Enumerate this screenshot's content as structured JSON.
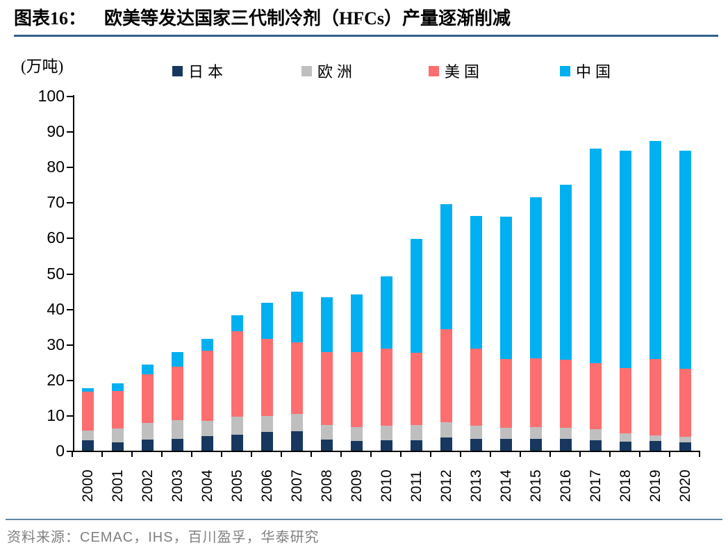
{
  "figure_label": "图表16：",
  "title": "欧美等发达国家三代制冷剂（HFCs）产量逐渐削减",
  "unit_label": "(万吨)",
  "source": "资料来源：CEMAC，IHS，百川盈孚，华泰研究",
  "colors": {
    "japan": "#17375E",
    "europe": "#BFBFBF",
    "usa": "#FC6E6F",
    "china": "#00B0F0",
    "title_rule": "#31608C",
    "source_rule": "#6088A8",
    "source_text": "#808080",
    "axis": "#000000"
  },
  "legend": [
    {
      "label": "日本",
      "color": "#17375E"
    },
    {
      "label": "欧洲",
      "color": "#BFBFBF"
    },
    {
      "label": "美国",
      "color": "#FC6E6F"
    },
    {
      "label": "中国",
      "color": "#00B0F0"
    }
  ],
  "chart_data": {
    "type": "bar",
    "stacked": true,
    "title": "欧美等发达国家三代制冷剂（HFCs）产量逐渐削减",
    "ylabel": "(万吨)",
    "xlabel": "",
    "ylim": [
      0,
      100
    ],
    "ytick_step": 10,
    "grid": false,
    "legend_position": "top",
    "categories": [
      "2000",
      "2001",
      "2002",
      "2003",
      "2004",
      "2005",
      "2006",
      "2007",
      "2008",
      "2009",
      "2010",
      "2011",
      "2012",
      "2013",
      "2014",
      "2015",
      "2016",
      "2017",
      "2018",
      "2019",
      "2020"
    ],
    "series": [
      {
        "name": "日本",
        "color": "#17375E",
        "values": [
          2.9,
          2.3,
          3.2,
          3.4,
          4.1,
          4.5,
          5.2,
          5.5,
          3.2,
          2.7,
          2.9,
          2.9,
          3.8,
          3.4,
          3.4,
          3.3,
          3.4,
          3.0,
          2.6,
          2.7,
          2.3
        ]
      },
      {
        "name": "欧洲",
        "color": "#BFBFBF",
        "values": [
          2.8,
          3.9,
          4.6,
          5.2,
          4.3,
          5.0,
          4.5,
          4.8,
          4.1,
          4.0,
          4.2,
          4.3,
          4.3,
          3.7,
          3.1,
          3.4,
          3.1,
          3.1,
          2.2,
          1.7,
          1.6
        ]
      },
      {
        "name": "美国",
        "color": "#FC6E6F",
        "values": [
          10.9,
          10.7,
          13.7,
          15.0,
          19.8,
          24.1,
          21.9,
          20.2,
          20.5,
          21.0,
          21.6,
          20.4,
          26.2,
          21.7,
          19.4,
          19.4,
          19.1,
          18.5,
          18.5,
          21.4,
          19.1
        ]
      },
      {
        "name": "中国",
        "color": "#00B0F0",
        "values": [
          1.1,
          2.0,
          2.8,
          4.2,
          3.4,
          4.5,
          10.1,
          14.3,
          15.4,
          16.3,
          20.4,
          32.1,
          35.1,
          37.3,
          40.1,
          45.3,
          49.3,
          60.5,
          61.2,
          61.4,
          61.6
        ]
      }
    ]
  }
}
